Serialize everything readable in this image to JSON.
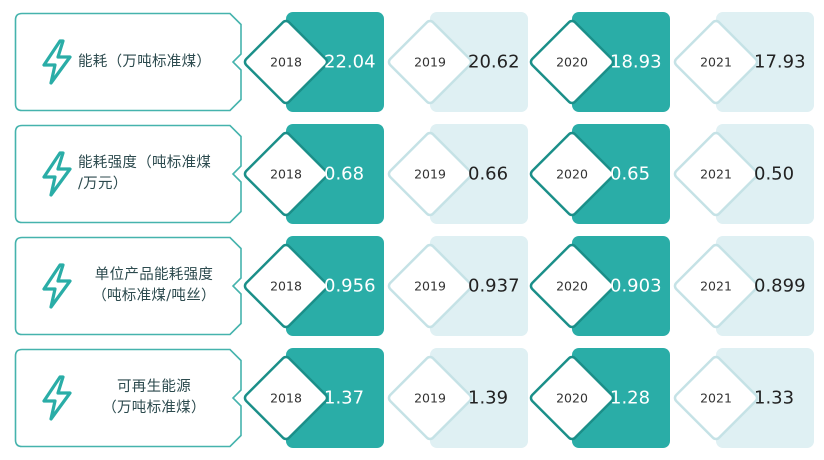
{
  "colors": {
    "teal": "#2aada7",
    "light_card": "#dff0f3",
    "outline": "#45b3ad",
    "text": "#2c4a4e"
  },
  "rows": [
    {
      "icon": "lightning-bolt-icon",
      "label_lines": [
        "能耗（万吨标准煤）"
      ],
      "entries": [
        {
          "year": "2018",
          "value": "22.04"
        },
        {
          "year": "2019",
          "value": "20.62"
        },
        {
          "year": "2020",
          "value": "18.93"
        },
        {
          "year": "2021",
          "value": "17.93"
        }
      ]
    },
    {
      "icon": "lightning-bolt-icon",
      "label_lines": [
        "能耗强度（吨标准煤",
        "/万元）"
      ],
      "entries": [
        {
          "year": "2018",
          "value": "0.68"
        },
        {
          "year": "2019",
          "value": "0.66"
        },
        {
          "year": "2020",
          "value": "0.65"
        },
        {
          "year": "2021",
          "value": "0.50"
        }
      ]
    },
    {
      "icon": "lightning-bolt-icon",
      "label_lines": [
        "单位产品能耗强度",
        "（吨标准煤/吨丝）"
      ],
      "entries": [
        {
          "year": "2018",
          "value": "0.956"
        },
        {
          "year": "2019",
          "value": "0.937"
        },
        {
          "year": "2020",
          "value": "0.903"
        },
        {
          "year": "2021",
          "value": "0.899"
        }
      ]
    },
    {
      "icon": "lightning-bolt-icon",
      "label_lines": [
        "可再生能源",
        "（万吨标准煤）"
      ],
      "entries": [
        {
          "year": "2018",
          "value": "1.37"
        },
        {
          "year": "2019",
          "value": "1.39"
        },
        {
          "year": "2020",
          "value": "1.28"
        },
        {
          "year": "2021",
          "value": "1.33"
        }
      ]
    }
  ]
}
